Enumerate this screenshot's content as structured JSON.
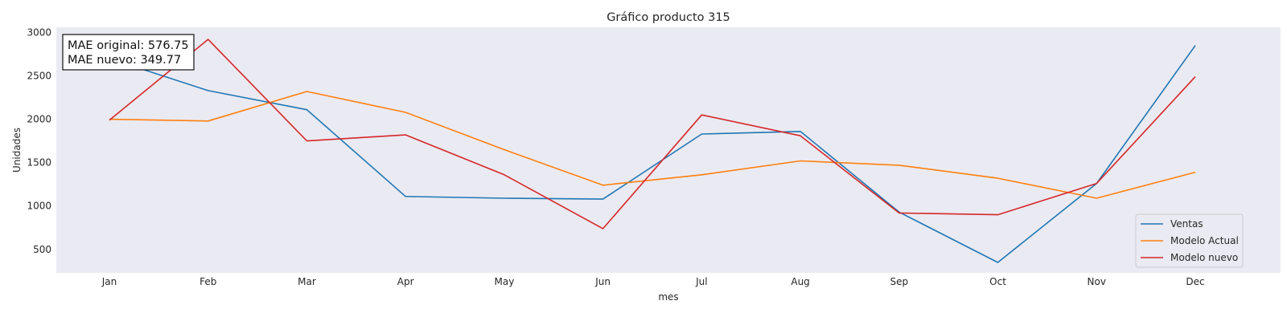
{
  "chart_data": {
    "type": "line",
    "title": "Gráfico producto 315",
    "xlabel": "mes",
    "ylabel": "Unidades",
    "categories": [
      "Jan",
      "Feb",
      "Mar",
      "Apr",
      "May",
      "Jun",
      "Jul",
      "Aug",
      "Sep",
      "Oct",
      "Nov",
      "Dec"
    ],
    "ylim": [
      230,
      3060
    ],
    "yticks": [
      500,
      1000,
      1500,
      2000,
      2500,
      3000
    ],
    "grid": false,
    "legend_position": "bottom-right",
    "series": [
      {
        "name": "Ventas",
        "color": "#1f77b4",
        "values": [
          2700,
          2330,
          2110,
          1110,
          1090,
          1080,
          1830,
          1860,
          930,
          350,
          1260,
          2850
        ]
      },
      {
        "name": "Modelo Actual",
        "color": "#ff7f0e",
        "values": [
          2000,
          1980,
          2320,
          2080,
          1650,
          1240,
          1360,
          1520,
          1470,
          1320,
          1090,
          1390
        ]
      },
      {
        "name": "Modelo nuevo",
        "color": "#d62728",
        "values": [
          1990,
          2920,
          1750,
          1820,
          1360,
          740,
          2050,
          1810,
          920,
          900,
          1260,
          2490
        ]
      }
    ],
    "annotation": {
      "lines": [
        "MAE original: 576.75",
        "MAE nuevo: 349.77"
      ]
    }
  },
  "colors": {
    "plot_background": "#eaeaf2",
    "text": "#262626"
  }
}
